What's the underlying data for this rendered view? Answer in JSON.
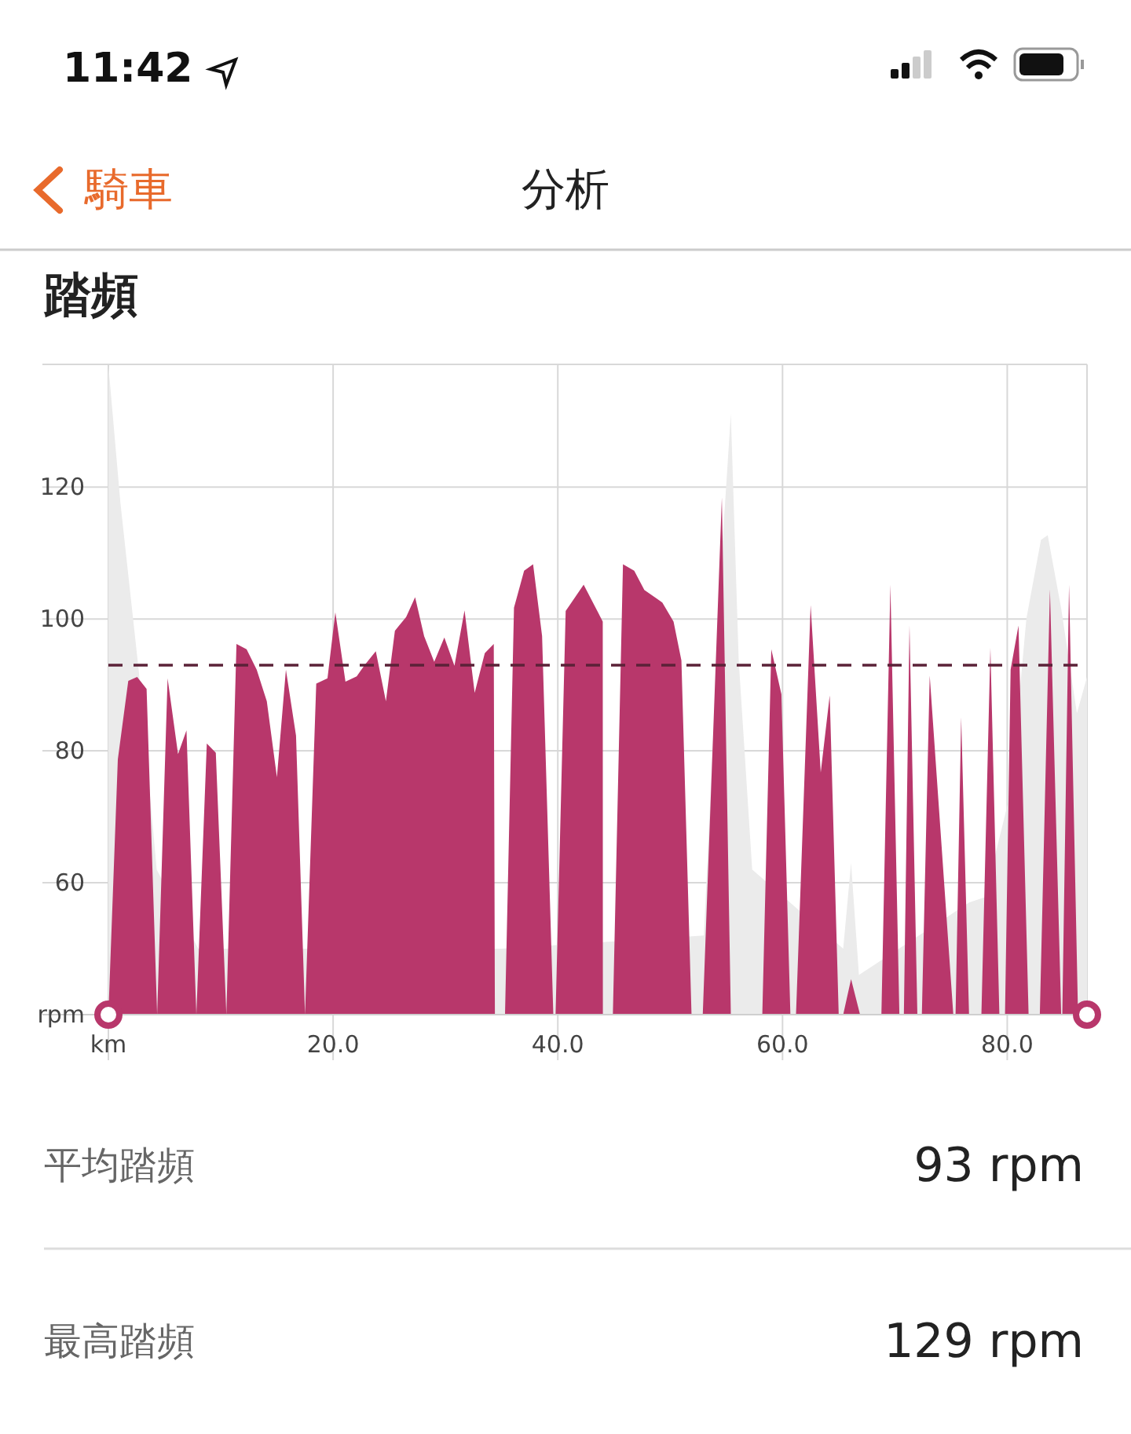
{
  "chart_data": {
    "type": "area",
    "title": "踏頻",
    "annotations": [
      "11:42",
      "騎車",
      "分析",
      "平均踏頻",
      "93 rpm",
      "最高踏頻",
      "129 rpm"
    ],
    "xlim": [
      0,
      87.1
    ],
    "ylim": [
      40,
      138.6
    ],
    "xticks": [
      {
        "value": 0,
        "label": "km"
      },
      {
        "value": 20,
        "label": "20.0"
      },
      {
        "value": 40,
        "label": "40.0"
      },
      {
        "value": 60,
        "label": "60.0"
      },
      {
        "value": 80,
        "label": "80.0"
      }
    ],
    "yticks": [
      {
        "value": 40,
        "label": "rpm"
      },
      60,
      80,
      100,
      120
    ],
    "grid": true,
    "ref_lines": [
      {
        "axis": "y",
        "value": 93,
        "color": "#5b2238",
        "line_style": "dashed"
      }
    ],
    "series": [
      {
        "color": "#ebebeb",
        "x": [
          0,
          1.07,
          2.7,
          4.3,
          8,
          35,
          53,
          54.6,
          55.4,
          56.1,
          57.3,
          65.4,
          66.1,
          66.8,
          76.6,
          78,
          80.3,
          81.7,
          83,
          83.6,
          84.8,
          86.2,
          87.1
        ],
        "values": [
          138.5,
          117.6,
          92.2,
          62,
          50,
          50,
          52,
          110,
          131.1,
          93.7,
          62,
          50,
          63,
          46,
          57,
          57.8,
          73.7,
          100,
          112,
          112.7,
          101.6,
          85.7,
          91.2
        ]
      },
      {
        "color": "#b8376b",
        "x": [
          0,
          0.84,
          1.77,
          2.56,
          3.4,
          4.34,
          5.27,
          6.2,
          6.95,
          7.83,
          8.76,
          9.56,
          10.5,
          11.4,
          12.3,
          13.2,
          14.1,
          15.0,
          15.8,
          16.7,
          17.5,
          18.5,
          19.5,
          20.2,
          21.1,
          22.1,
          22.8,
          23.8,
          24.7,
          25.5,
          26.5,
          27.3,
          28.1,
          29.0,
          29.9,
          30.8,
          31.7,
          32.6,
          33.5,
          34.3,
          34.4,
          35.3,
          36.1,
          37.0,
          37.8,
          38.6,
          39.6,
          39.8,
          40.7,
          42.3,
          44.0,
          44.01,
          44.9,
          45.8,
          46.8,
          47.7,
          49.3,
          50.3,
          51.0,
          51.9,
          52.9,
          54.6,
          55.4,
          58.2,
          59.0,
          59.9,
          60.7,
          61.2,
          62.5,
          63.4,
          64.2,
          65.0,
          65.4,
          66.1,
          66.9,
          68.8,
          69.6,
          70.4,
          70.8,
          71.3,
          72.0,
          72.4,
          73.1,
          75.2,
          75.4,
          75.9,
          76.6,
          77.7,
          78.5,
          79.3,
          79.8,
          80.3,
          81.0,
          81.9,
          82.9,
          83.8,
          84.8,
          84.9,
          85.5,
          86.3
        ],
        "values": [
          40,
          78.7,
          90.6,
          91.2,
          89.4,
          40,
          91,
          79.5,
          83.1,
          40,
          81.1,
          79.7,
          40,
          96.2,
          95.4,
          92.3,
          87.5,
          76,
          92.3,
          82.3,
          40,
          90.2,
          91,
          101,
          90.5,
          91.3,
          93,
          95.1,
          87.5,
          98.2,
          100.3,
          103.3,
          97.4,
          93.5,
          97.2,
          92.9,
          101.3,
          88.8,
          94.8,
          96.2,
          40,
          40,
          101.7,
          107.3,
          108.3,
          97.4,
          40,
          40,
          101.2,
          105.2,
          99.6,
          40,
          40,
          108.3,
          107.3,
          104.4,
          102.5,
          99.6,
          93.7,
          40,
          40,
          118.4,
          40,
          40,
          95.4,
          88.6,
          40,
          40,
          102.1,
          76.7,
          88.4,
          40,
          40,
          45.4,
          40,
          40,
          105.2,
          40,
          40,
          99,
          40,
          40,
          91.4,
          40,
          40,
          85.1,
          40,
          40,
          95.6,
          40,
          40,
          92.3,
          99,
          40,
          40,
          104.5,
          40,
          40,
          105.2,
          40
        ]
      }
    ]
  }
}
